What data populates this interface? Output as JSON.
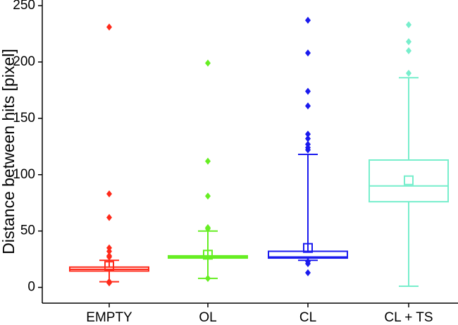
{
  "chart_data": {
    "type": "box",
    "y_label": "Distance between hits [pixel]",
    "categories": [
      "EMPTY",
      "OL",
      "CL",
      "CL + TS"
    ],
    "ylim": [
      -14,
      250
    ],
    "yticks": [
      0,
      50,
      100,
      150,
      200,
      250
    ],
    "boxes": [
      {
        "color": "#ff2a1a",
        "whisker_low": 5,
        "q1": 14.5,
        "median": 16,
        "q3": 18,
        "whisker_high": 24,
        "mean": 19,
        "outliers": [
          231,
          83,
          62,
          35,
          32,
          28,
          27,
          5,
          5,
          4
        ]
      },
      {
        "color": "#66ee22",
        "whisker_low": 8,
        "q1": 26,
        "median": 27,
        "q3": 28,
        "whisker_high": 50,
        "mean": 29,
        "outliers": [
          199,
          112,
          81,
          53,
          52,
          8,
          8
        ]
      },
      {
        "color": "#1a1aee",
        "whisker_low": 24,
        "q1": 26,
        "median": 27,
        "q3": 32,
        "whisker_high": 118,
        "mean": 35,
        "outliers": [
          237,
          208,
          174,
          161,
          136,
          132,
          127,
          124,
          122,
          23,
          21,
          13
        ]
      },
      {
        "color": "#77eecc",
        "whisker_low": 1,
        "q1": 76,
        "median": 90,
        "q3": 113,
        "whisker_high": 186,
        "mean": 95,
        "outliers": [
          233,
          218,
          210,
          190
        ]
      }
    ]
  }
}
